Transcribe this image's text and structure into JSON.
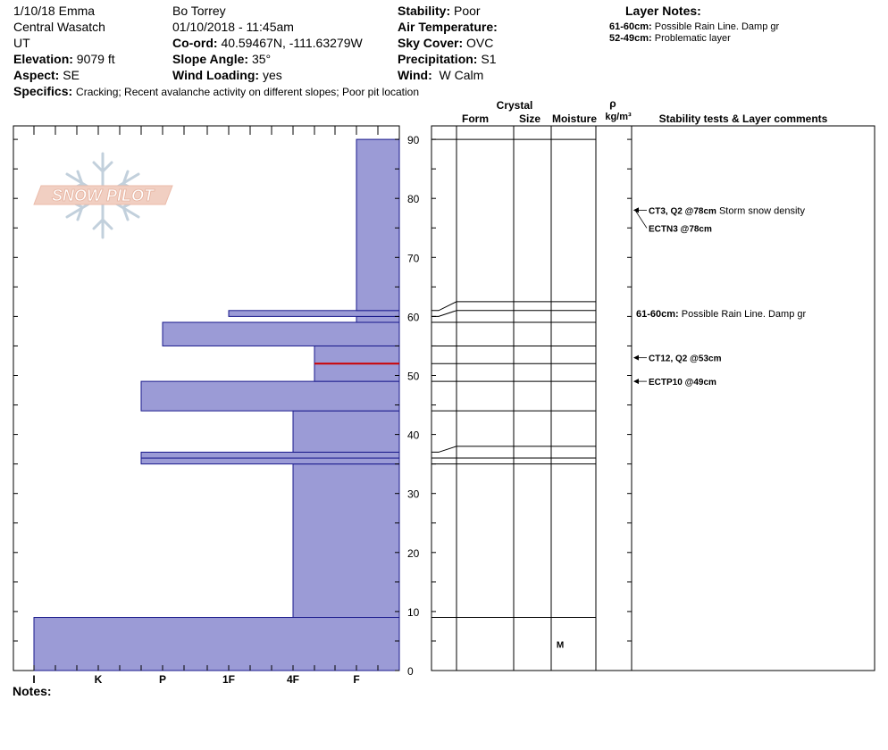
{
  "header": {
    "date_observer": "1/10/18 Emma",
    "range": "Central Wasatch",
    "state": "UT",
    "elevation_label": "Elevation:",
    "elevation_value": "9079 ft",
    "aspect_label": "Aspect:",
    "aspect_value": "SE",
    "location_name": "Bo Torrey",
    "datetime": "01/10/2018 - 11:45am",
    "coord_label": "Co-ord:",
    "coord_value": "40.59467N, -111.63279W",
    "slope_label": "Slope Angle:",
    "slope_value": "35°",
    "wind_loading_label": "Wind Loading:",
    "wind_loading_value": "yes",
    "stability_label": "Stability:",
    "stability_value": "Poor",
    "air_temp_label": "Air Temperature:",
    "sky_cover_label": "Sky Cover:",
    "sky_cover_value": "OVC",
    "precip_label": "Precipitation:",
    "precip_value": "S1",
    "wind_label": "Wind:",
    "wind_value": "W Calm",
    "specifics_label": "Specifics:",
    "specifics_value": "Cracking;  Recent avalanche activity on different slopes;  Poor pit location"
  },
  "layer_notes": {
    "title": "Layer Notes:",
    "items": [
      {
        "range": "61-60cm:",
        "text": "Possible Rain Line. Damp gr"
      },
      {
        "range": "52-49cm:",
        "text": "Problematic layer"
      }
    ]
  },
  "logo": {
    "text": "SNOW PILOT"
  },
  "notes_label": "Notes:",
  "columns": {
    "crystal": "Crystal",
    "form": "Form",
    "size": "Size",
    "moisture": "Moisture",
    "rho": "ρ",
    "density_unit": "kg/m³",
    "comments": "Stability tests & Layer comments"
  },
  "colors": {
    "layer_fill": "#9b9bd6",
    "layer_stroke": "#1a1a8c",
    "problem_layer": "#cc0000"
  },
  "chart_data": {
    "type": "bar",
    "orientation": "horizontal",
    "ylabel": "",
    "ylim": [
      0,
      92
    ],
    "y_ticks": [
      0,
      10,
      20,
      30,
      40,
      50,
      60,
      70,
      80,
      90
    ],
    "hardness_scale": [
      "I",
      "K",
      "P",
      "1F",
      "4F",
      "F"
    ],
    "layers": [
      {
        "bottom": 0,
        "top": 9,
        "hardness": "I"
      },
      {
        "bottom": 9,
        "top": 35,
        "hardness": "4F"
      },
      {
        "bottom": 35,
        "top": 36,
        "hardness": "P-"
      },
      {
        "bottom": 36,
        "top": 37,
        "hardness": "P-"
      },
      {
        "bottom": 37,
        "top": 44,
        "hardness": "4F"
      },
      {
        "bottom": 44,
        "top": 49,
        "hardness": "P-"
      },
      {
        "bottom": 49,
        "top": 52,
        "hardness": "4F+"
      },
      {
        "bottom": 52,
        "top": 55,
        "hardness": "4F+"
      },
      {
        "bottom": 55,
        "top": 59,
        "hardness": "P"
      },
      {
        "bottom": 59,
        "top": 60,
        "hardness": "F"
      },
      {
        "bottom": 60,
        "top": 61,
        "hardness": "1F"
      },
      {
        "bottom": 61,
        "top": 90,
        "hardness": "F"
      }
    ],
    "problem_layer_depth": 52,
    "moisture": [
      {
        "depth_range": [
          0,
          9
        ],
        "value": "M"
      }
    ],
    "stability_tests": [
      {
        "depth": 78,
        "label": "CT3, Q2 @78cm",
        "comment": "Storm snow density"
      },
      {
        "depth": 78,
        "label": "ECTN3 @78cm",
        "comment": ""
      },
      {
        "depth": 53,
        "label": "CT12, Q2 @53cm",
        "comment": ""
      },
      {
        "depth": 49,
        "label": "ECTP10 @49cm",
        "comment": ""
      }
    ],
    "layer_comments": [
      {
        "depth": 60.5,
        "label": "61-60cm:",
        "comment": "Possible Rain Line. Damp gr"
      }
    ]
  }
}
